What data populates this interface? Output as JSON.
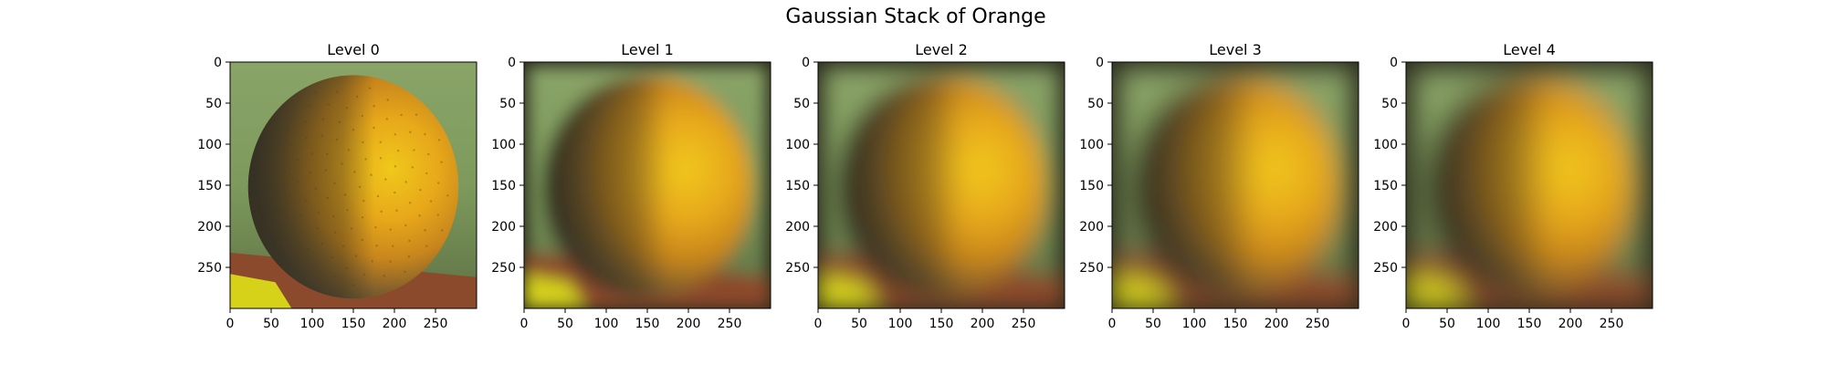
{
  "figure_title": "Gaussian Stack of Orange",
  "chart_data": {
    "type": "image-grid",
    "title": "Gaussian Stack of Orange",
    "x_ticks": [
      0,
      50,
      100,
      150,
      200,
      250
    ],
    "y_ticks": [
      0,
      50,
      100,
      150,
      200,
      250
    ],
    "image_extent": [
      300,
      300
    ],
    "panels": [
      {
        "title": "Level 0",
        "blur_sigma": 0
      },
      {
        "title": "Level 1",
        "blur_sigma": 9
      },
      {
        "title": "Level 2",
        "blur_sigma": 12
      },
      {
        "title": "Level 3",
        "blur_sigma": 14
      },
      {
        "title": "Level 4",
        "blur_sigma": 15
      }
    ]
  },
  "colors": {
    "background_green": "#7d9a5c",
    "orange_dark": "#5a4a32",
    "orange_mid": "#c8861c",
    "orange_bright": "#f0c81a",
    "table_red": "#8c4a2c",
    "leaf_yellow": "#d6d21a"
  }
}
